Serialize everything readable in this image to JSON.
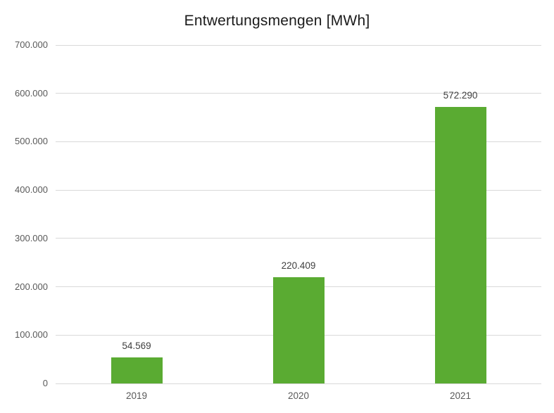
{
  "chart_data": {
    "type": "bar",
    "title": "Entwertungsmengen [MWh]",
    "categories": [
      "2019",
      "2020",
      "2021"
    ],
    "values": [
      54569,
      220409,
      572290
    ],
    "value_labels": [
      "54.569",
      "220.409",
      "572.290"
    ],
    "xlabel": "",
    "ylabel": "",
    "ylim": [
      0,
      700000
    ],
    "ytick_interval": 100000,
    "ytick_labels": [
      "0",
      "100.000",
      "200.000",
      "300.000",
      "400.000",
      "500.000",
      "600.000",
      "700.000"
    ],
    "grid": true,
    "legend": "none",
    "colors": {
      "bar": "#5aab32",
      "gridline": "#d9d9d9",
      "axis_line": "#d9d9d9",
      "axis_text": "#595959",
      "data_label_text": "#404040",
      "title_text": "#1a1a1a",
      "background": "#ffffff"
    }
  }
}
